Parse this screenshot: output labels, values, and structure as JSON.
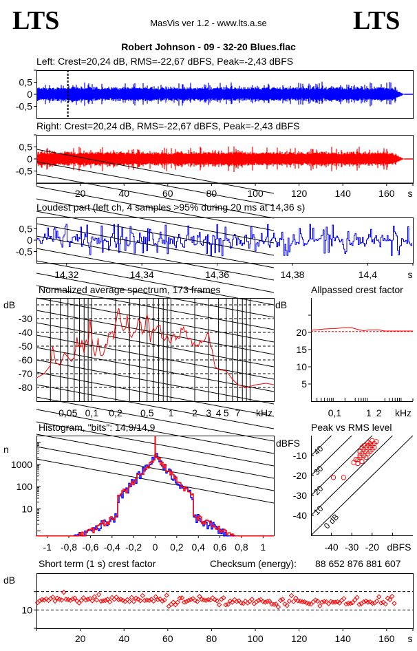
{
  "header": {
    "logo_left": "LTS",
    "logo_right": "LTS",
    "app_title": "MasVis ver 1.2 - www.lts.a.se",
    "file_title": "Robert Johnson - 09 - 32-20 Blues.flac"
  },
  "chart_data": [
    {
      "id": "left-waveform",
      "type": "line",
      "title": "Left: Crest=20,24 dB, RMS=-22,67 dBFS, Peak=-2,43 dBFS",
      "channel": "left",
      "color": "#0000ff",
      "crest_db": 20.24,
      "rms_dbfs": -22.67,
      "peak_dbfs": -2.43,
      "ylim": [
        -1,
        1
      ],
      "yticks": [
        "0,5",
        "0",
        "-0,5"
      ],
      "marker_time_s": 14.36,
      "duration_s": 168,
      "envelope_peak": 0.6
    },
    {
      "id": "right-waveform",
      "type": "line",
      "title": "Right: Crest=20,24 dB, RMS=-22,67 dBFS, Peak=-2,43 dBFS",
      "channel": "right",
      "color": "#ff0000",
      "crest_db": 20.24,
      "rms_dbfs": -22.67,
      "peak_dbfs": -2.43,
      "ylim": [
        -1,
        1
      ],
      "yticks": [
        "0,5",
        "0",
        "-0,5"
      ],
      "xlim": [
        0,
        172
      ],
      "xticks": [
        "20",
        "40",
        "60",
        "80",
        "100",
        "120",
        "140",
        "160",
        "s"
      ],
      "duration_s": 168,
      "envelope_peak": 0.6
    },
    {
      "id": "loudest-part",
      "type": "line",
      "title": "Loudest part (left  ch, 4 samples >95% during 20 ms at 14,36 s)",
      "color": "#0000ff",
      "ylim": [
        -1,
        1
      ],
      "yticks": [
        "0,5",
        "0",
        "-0,5"
      ],
      "xlim": [
        14.312,
        14.412
      ],
      "xticks": [
        "14,32",
        "14,34",
        "14,36",
        "14,38",
        "14,4",
        "s"
      ]
    },
    {
      "id": "spectrum",
      "type": "line",
      "title": "Normalized average spectrum, 173 frames",
      "ylabel": "dB",
      "yticks": [
        "-30",
        "-40",
        "-50",
        "-60",
        "-70",
        "-80"
      ],
      "ylim": [
        -90,
        -15
      ],
      "xlabel": "kHz",
      "xticks": [
        "0,05",
        "0,1",
        "0,2",
        "0,5",
        "1",
        "2",
        "3",
        "4",
        "5",
        "7",
        "kHz"
      ],
      "xlim_khz": [
        0.02,
        20
      ],
      "color": "#ff0000",
      "points_khz_db": [
        [
          0.02,
          -73
        ],
        [
          0.025,
          -70
        ],
        [
          0.03,
          -64
        ],
        [
          0.032,
          -50
        ],
        [
          0.035,
          -62
        ],
        [
          0.04,
          -64
        ],
        [
          0.045,
          -55
        ],
        [
          0.05,
          -58
        ],
        [
          0.055,
          -61
        ],
        [
          0.06,
          -58
        ],
        [
          0.065,
          -46
        ],
        [
          0.07,
          -50
        ],
        [
          0.075,
          -48
        ],
        [
          0.08,
          -54
        ],
        [
          0.085,
          -45
        ],
        [
          0.09,
          -50
        ],
        [
          0.095,
          -33
        ],
        [
          0.1,
          -46
        ],
        [
          0.11,
          -54
        ],
        [
          0.12,
          -45
        ],
        [
          0.13,
          -56
        ],
        [
          0.15,
          -50
        ],
        [
          0.17,
          -40
        ],
        [
          0.19,
          -44
        ],
        [
          0.22,
          -22
        ],
        [
          0.25,
          -42
        ],
        [
          0.28,
          -30
        ],
        [
          0.32,
          -45
        ],
        [
          0.36,
          -38
        ],
        [
          0.4,
          -31
        ],
        [
          0.45,
          -42
        ],
        [
          0.5,
          -28
        ],
        [
          0.55,
          -44
        ],
        [
          0.6,
          -38
        ],
        [
          0.7,
          -35
        ],
        [
          0.8,
          -44
        ],
        [
          1.0,
          -46
        ],
        [
          1.2,
          -42
        ],
        [
          1.5,
          -38
        ],
        [
          1.8,
          -48
        ],
        [
          2.0,
          -50
        ],
        [
          2.5,
          -45
        ],
        [
          3.0,
          -43
        ],
        [
          3.3,
          -52
        ],
        [
          3.6,
          -65
        ],
        [
          4.0,
          -67
        ],
        [
          5.0,
          -68
        ],
        [
          6.0,
          -74
        ],
        [
          7.0,
          -78
        ],
        [
          9.0,
          -80
        ],
        [
          12,
          -78
        ],
        [
          16,
          -77
        ],
        [
          20,
          -78
        ]
      ]
    },
    {
      "id": "allpassed-crest",
      "type": "line",
      "title": "Allpassed crest factor",
      "ylabel": "dB",
      "yticks": [
        "20",
        "15",
        "10",
        "5"
      ],
      "ylim": [
        0,
        30
      ],
      "xlabel": "kHz",
      "xticks": [
        "0,1",
        "1",
        "2",
        "kHz"
      ],
      "color": "#ff0000",
      "reference_db": 20.24,
      "points_khz_db": [
        [
          0.02,
          20.6
        ],
        [
          0.05,
          21.0
        ],
        [
          0.1,
          21.1
        ],
        [
          0.2,
          21.4
        ],
        [
          0.3,
          21.4
        ],
        [
          0.5,
          20.8
        ],
        [
          0.7,
          20.5
        ],
        [
          1.0,
          20.7
        ],
        [
          2.0,
          20.7
        ],
        [
          3.0,
          20.4
        ],
        [
          20,
          20.4
        ]
      ]
    },
    {
      "id": "histogram",
      "type": "line",
      "title": "Histogram, \"bits\": 14,9/14,9",
      "ylabel": "n",
      "yticks": [
        "1000",
        "100",
        "10"
      ],
      "xticks": [
        "-1",
        "-0,8",
        "-0,6",
        "-0,4",
        "-0,2",
        "0",
        "0,2",
        "0,4",
        "0,6",
        "0,8",
        "1"
      ],
      "xlim": [
        -1.1,
        1.1
      ],
      "bits_left": 14.9,
      "bits_right": 14.9
    },
    {
      "id": "peak-vs-rms",
      "type": "scatter",
      "title": "Peak vs RMS level",
      "ylabel": "dBFS",
      "xlabel": "dBFS",
      "yticks": [
        "-10",
        "-20",
        "-30",
        "-40"
      ],
      "xticks": [
        "-40",
        "-30",
        "-20"
      ],
      "xlim": [
        -50,
        0
      ],
      "ylim": [
        -50,
        0
      ],
      "diagonal_labels": [
        "40",
        "30",
        "20",
        "10",
        "0 dB"
      ],
      "color": "#ff0000",
      "points_rms_peak": [
        [
          -39,
          -21
        ],
        [
          -34,
          -21
        ],
        [
          -29,
          -13.5
        ],
        [
          -28,
          -12
        ],
        [
          -27,
          -14
        ],
        [
          -26,
          -11
        ],
        [
          -26,
          -8
        ],
        [
          -25,
          -13
        ],
        [
          -25,
          -9
        ],
        [
          -25,
          -6
        ],
        [
          -24,
          -10
        ],
        [
          -24,
          -7
        ],
        [
          -24,
          -5
        ],
        [
          -23,
          -11
        ],
        [
          -23,
          -8
        ],
        [
          -23,
          -6
        ],
        [
          -22,
          -9
        ],
        [
          -22,
          -5
        ],
        [
          -22,
          -3.5
        ],
        [
          -21,
          -8
        ],
        [
          -21,
          -6
        ],
        [
          -21,
          -4
        ],
        [
          -20,
          -7
        ],
        [
          -20,
          -5
        ],
        [
          -20,
          -2.5
        ],
        [
          -19,
          -6
        ],
        [
          -19,
          -4
        ],
        [
          -18,
          -3
        ],
        [
          -27,
          -12
        ],
        [
          -26,
          -10
        ]
      ]
    },
    {
      "id": "short-term-crest",
      "type": "scatter",
      "title": "Short term (1 s) crest factor",
      "ylabel": "dB",
      "yticks": [
        "10"
      ],
      "ylim": [
        5,
        20
      ],
      "xlim": [
        0,
        172
      ],
      "xticks": [
        "20",
        "40",
        "60",
        "80",
        "100",
        "120",
        "140",
        "160",
        "s"
      ],
      "color": "#ff0000",
      "dashed_lines_db": [
        10,
        15
      ],
      "values_db": [
        12,
        12.5,
        12.8,
        12.7,
        13,
        12.6,
        13.1,
        13.5,
        12.4,
        13.2,
        12.9,
        12.7,
        14.8,
        12.9,
        12.8,
        12.6,
        13,
        13.2,
        12.4,
        11.9,
        12.6,
        13.3,
        12.7,
        12.9,
        13.1,
        12.5,
        13.6,
        12.7,
        14.2,
        12.4,
        12.5,
        12.6,
        12.9,
        12.2,
        13.4,
        12.9,
        13.5,
        12.8,
        12.9,
        12.6,
        12.3,
        12.8,
        12.3,
        13.4,
        12.3,
        13.2,
        12.9,
        12.5,
        13.9,
        12.6,
        12.7,
        12.6,
        12.9,
        12.4,
        13.6,
        12.8,
        13,
        12.4,
        12.7,
        14,
        11,
        11.5,
        12.1,
        11.4,
        12.1,
        13.2,
        13.3,
        12.1,
        12.3,
        12.6,
        12.8,
        13.1,
        12.6,
        12.3,
        13.7,
        12.9,
        12.7,
        12.6,
        12.8,
        12.7,
        13.3,
        12.8,
        12.5,
        11.4,
        12.9,
        13.3,
        11.4,
        11.5,
        12.4,
        12.1,
        12.8,
        12.3,
        12.5,
        11.9,
        11.8,
        12.4,
        11.9,
        12.3,
        12.9,
        11.7,
        12.2,
        12.6,
        12.8,
        12.3,
        12.1,
        12.3,
        12.4,
        11.6,
        11.5,
        11.6,
        10.8,
        12.6,
        12.9,
        11.6,
        11.2,
        12.4,
        13.9,
        12.3,
        13.2,
        12.5,
        12.4,
        12.2,
        12.2,
        11.9,
        11.7,
        11.6,
        12.2,
        12.7,
        12.4,
        11.1,
        12.1,
        12.3,
        12.2,
        11.7,
        12.3,
        12.1,
        12.1,
        12.2,
        11.9,
        12.6,
        13.1,
        11.6,
        11.8,
        11.8,
        12,
        12.7,
        13.4,
        11.5,
        11.7,
        12.2,
        12.4,
        12.1,
        12.2,
        11.8,
        11.9,
        12.4,
        13.6,
        11.9,
        12.1,
        11.6,
        13.2,
        12.8,
        13.7,
        11.8
      ]
    }
  ],
  "checksum": {
    "label": "Checksum (energy):",
    "value": "88 652 876 881 607"
  }
}
